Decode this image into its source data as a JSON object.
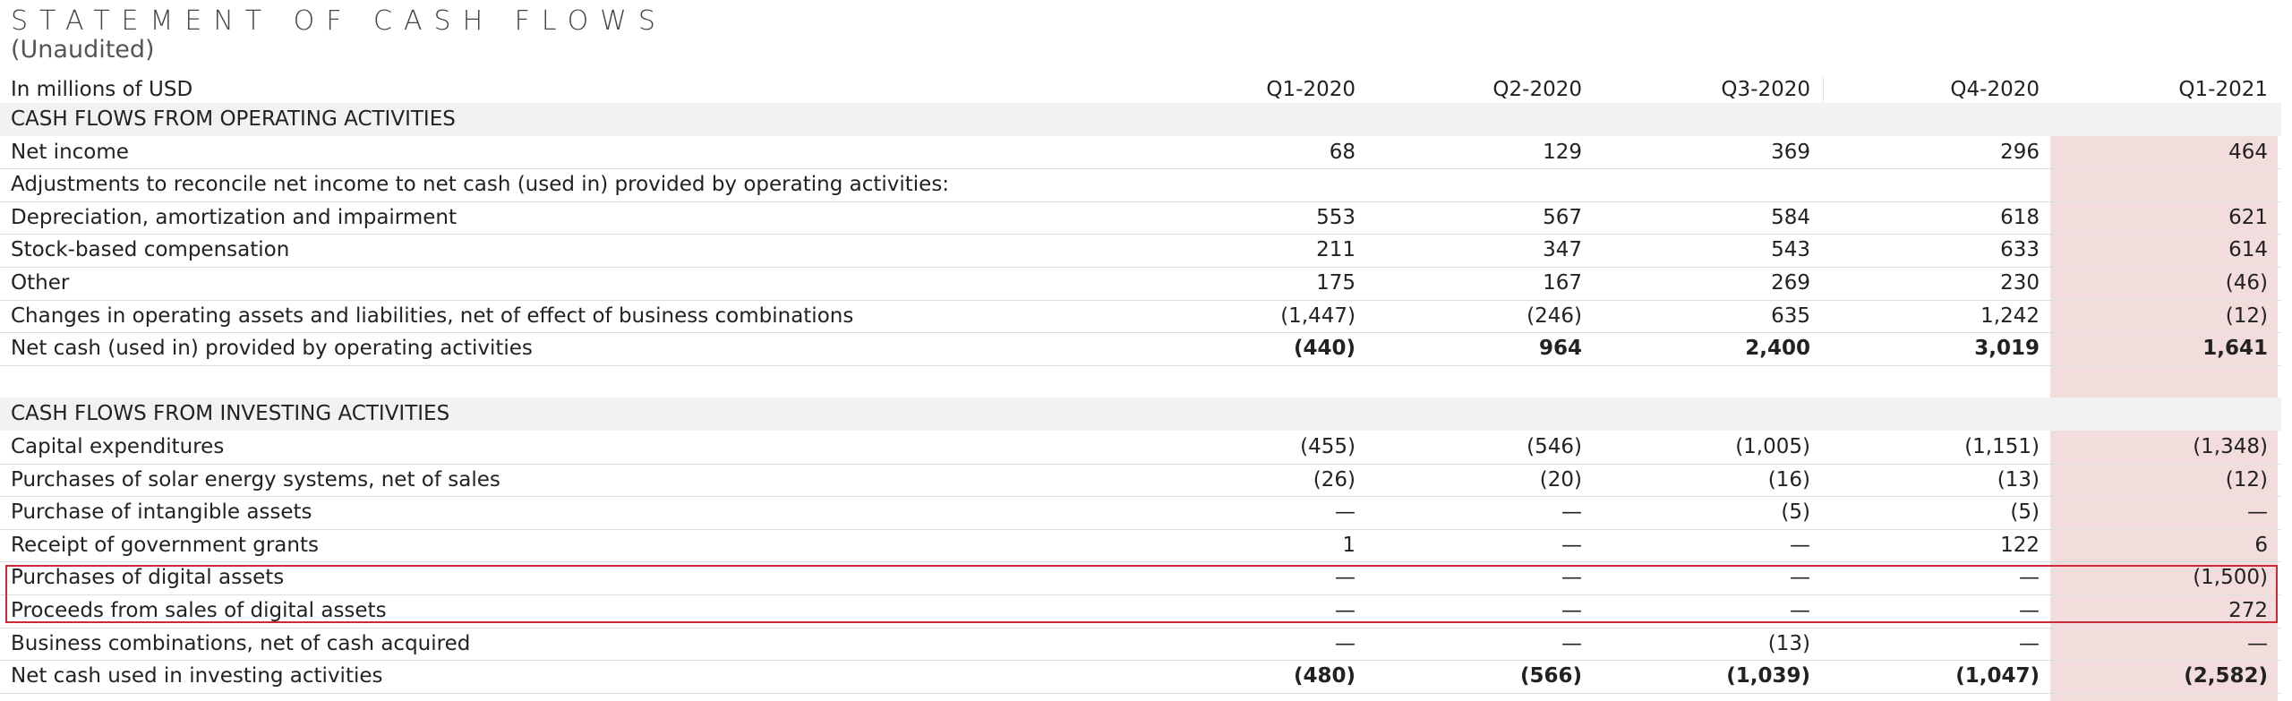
{
  "title": "STATEMENT OF CASH FLOWS",
  "subtitle": "(Unaudited)",
  "units_label": "In millions of USD",
  "columns": [
    "Q1-2020",
    "Q2-2020",
    "Q3-2020",
    "Q4-2020",
    "Q1-2021"
  ],
  "highlight_color": "#cc2b35",
  "q1_2021_shade_color": "#f3dcdc",
  "rows": [
    {
      "type": "section",
      "label": "CASH FLOWS FROM OPERATING ACTIVITIES",
      "values": [
        "",
        "",
        "",
        "",
        ""
      ]
    },
    {
      "type": "item",
      "label": "Net income",
      "values": [
        "68",
        "129",
        "369",
        "296",
        "464"
      ]
    },
    {
      "type": "item",
      "label": "Adjustments to reconcile net income to net cash (used in) provided by operating activities:",
      "values": [
        "",
        "",
        "",
        "",
        ""
      ]
    },
    {
      "type": "item",
      "label": "Depreciation, amortization and impairment",
      "values": [
        "553",
        "567",
        "584",
        "618",
        "621"
      ]
    },
    {
      "type": "item",
      "label": "Stock-based compensation",
      "values": [
        "211",
        "347",
        "543",
        "633",
        "614"
      ]
    },
    {
      "type": "item",
      "label": "Other",
      "values": [
        "175",
        "167",
        "269",
        "230",
        "(46)"
      ]
    },
    {
      "type": "item",
      "label": "Changes in operating assets and liabilities, net of effect of business combinations",
      "values": [
        "(1,447)",
        "(246)",
        "635",
        "1,242",
        "(12)"
      ]
    },
    {
      "type": "total",
      "label": "Net cash (used in) provided by operating activities",
      "values": [
        "(440)",
        "964",
        "2,400",
        "3,019",
        "1,641"
      ]
    },
    {
      "type": "blank",
      "label": "",
      "values": [
        "",
        "",
        "",
        "",
        ""
      ]
    },
    {
      "type": "section",
      "label": "CASH FLOWS FROM INVESTING ACTIVITIES",
      "values": [
        "",
        "",
        "",
        "",
        ""
      ]
    },
    {
      "type": "item",
      "label": "Capital expenditures",
      "values": [
        "(455)",
        "(546)",
        "(1,005)",
        "(1,151)",
        "(1,348)"
      ]
    },
    {
      "type": "item",
      "label": "Purchases of solar energy systems, net of sales",
      "values": [
        "(26)",
        "(20)",
        "(16)",
        "(13)",
        "(12)"
      ]
    },
    {
      "type": "item",
      "label": "Purchase of intangible assets",
      "values": [
        "—",
        "—",
        "(5)",
        "(5)",
        "—"
      ]
    },
    {
      "type": "item",
      "label": "Receipt of government grants",
      "values": [
        "1",
        "—",
        "—",
        "122",
        "6"
      ]
    },
    {
      "type": "item",
      "label": "Purchases of digital assets",
      "values": [
        "—",
        "—",
        "—",
        "—",
        "(1,500)"
      ]
    },
    {
      "type": "item",
      "label": "Proceeds from sales of digital assets",
      "values": [
        "—",
        "—",
        "—",
        "—",
        "272"
      ]
    },
    {
      "type": "item",
      "label": "Business combinations, net of cash acquired",
      "values": [
        "—",
        "—",
        "(13)",
        "—",
        "—"
      ]
    },
    {
      "type": "total",
      "label": "Net cash used in investing activities",
      "values": [
        "(480)",
        "(566)",
        "(1,039)",
        "(1,047)",
        "(2,582)"
      ]
    }
  ]
}
